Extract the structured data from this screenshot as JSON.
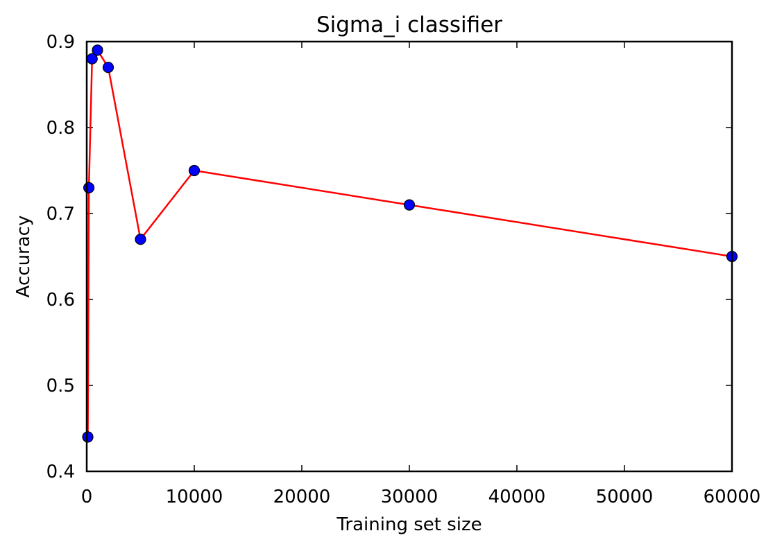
{
  "chart_data": {
    "type": "line",
    "title": "Sigma_i classifier",
    "xlabel": "Training set size",
    "ylabel": "Accuracy",
    "xlim": [
      0,
      60000
    ],
    "ylim": [
      0.4,
      0.9
    ],
    "xticks": [
      0,
      10000,
      20000,
      30000,
      40000,
      50000,
      60000
    ],
    "xtick_labels": [
      "0",
      "10000",
      "20000",
      "30000",
      "40000",
      "50000",
      "60000"
    ],
    "yticks": [
      0.4,
      0.5,
      0.6,
      0.7,
      0.8,
      0.9
    ],
    "ytick_labels": [
      "0.4",
      "0.5",
      "0.6",
      "0.7",
      "0.8",
      "0.9"
    ],
    "grid": false,
    "series": [
      {
        "x": [
          100,
          200,
          500,
          1000,
          2000,
          5000,
          10000,
          30000,
          60000
        ],
        "y": [
          0.44,
          0.73,
          0.88,
          0.89,
          0.87,
          0.67,
          0.75,
          0.71,
          0.65
        ],
        "line_color": "#ff0000",
        "marker_color": "#0000ff"
      }
    ]
  }
}
